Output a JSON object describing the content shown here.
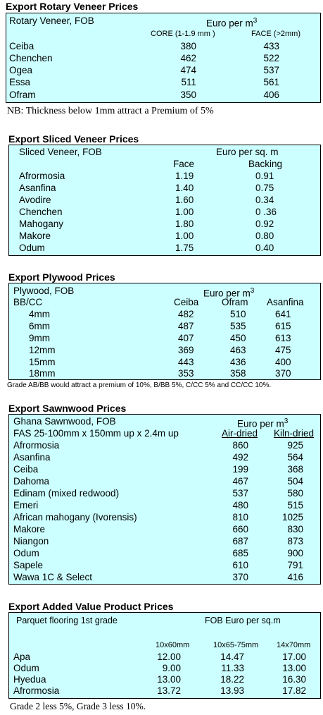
{
  "rotary": {
    "title": "Export Rotary Veneer Prices",
    "label": "Rotary Veneer,  FOB",
    "unit": "Euro  per m",
    "unit_sup": "3",
    "col1": "CORE (1-1.9 mm )",
    "col2": "FACE (>2mm)",
    "rows": [
      {
        "name": "Ceiba",
        "core": "380",
        "face": "433"
      },
      {
        "name": "Chenchen",
        "core": "462",
        "face": "522"
      },
      {
        "name": "Ogea",
        "core": "474",
        "face": "537"
      },
      {
        "name": "Essa",
        "core": "511",
        "face": "561"
      },
      {
        "name": "Ofram",
        "core": "350",
        "face": "406"
      }
    ],
    "note": "NB: Thickness below 1mm attract a Premium of 5%"
  },
  "sliced": {
    "title": "Export Sliced Veneer Prices",
    "label": "Sliced Veneer, FOB",
    "unit": "Euro per sq. m",
    "col1": "Face",
    "col2": "Backing",
    "rows": [
      {
        "name": "Afrormosia",
        "face": "1.19",
        "backing": "0.91"
      },
      {
        "name": "Asanfina",
        "face": "1.40",
        "backing": "0.75"
      },
      {
        "name": "Avodire",
        "face": "1.60",
        "backing": "0.34"
      },
      {
        "name": "Chenchen",
        "face": "1.00",
        "backing": "0 .36"
      },
      {
        "name": "Mahogany",
        "face": "1.80",
        "backing": "0.92"
      },
      {
        "name": "Makore",
        "face": "1.00",
        "backing": "0.80"
      },
      {
        "name": "Odum",
        "face": "1.75",
        "backing": "0.40"
      }
    ]
  },
  "plywood": {
    "title": "Export Plywood Prices",
    "label": "Plywood, FOB",
    "sublabel": "BB/CC",
    "unit": "Euro per m",
    "unit_sup": "3",
    "col1": "Ceiba",
    "col2": "Ofram",
    "col3": "Asanfina",
    "rows": [
      {
        "name": "4mm",
        "ceiba": "482",
        "ofram": "510",
        "asanfina": "641"
      },
      {
        "name": "6mm",
        "ceiba": "487",
        "ofram": "535",
        "asanfina": "615"
      },
      {
        "name": "9mm",
        "ceiba": "407",
        "ofram": "450",
        "asanfina": "613"
      },
      {
        "name": "12mm",
        "ceiba": "369",
        "ofram": "463",
        "asanfina": "475"
      },
      {
        "name": "15mm",
        "ceiba": "443",
        "ofram": "436",
        "asanfina": "400"
      },
      {
        "name": "18mm",
        "ceiba": "353",
        "ofram": "358",
        "asanfina": "370"
      }
    ],
    "note": "Grade AB/BB would attract a premium of 10%, B/BB 5%, C/CC 5% and CC/CC 10%."
  },
  "sawn": {
    "title": "Export Sawnwood Prices",
    "label": "Ghana Sawnwood, FOB",
    "unit": "Euro per m",
    "unit_sup": "3",
    "spec": "FAS 25-100mm x 150mm up x 2.4m up",
    "col1": "Air-dried",
    "col2": "Kiln-dried",
    "rows": [
      {
        "name": "Afrormosia",
        "air": "860",
        "kiln": "925"
      },
      {
        "name": "Asanfina",
        "air": "492",
        "kiln": "564"
      },
      {
        "name": "Ceiba",
        "air": "199",
        "kiln": "368"
      },
      {
        "name": "Dahoma",
        "air": "467",
        "kiln": "504"
      },
      {
        "name": "Edinam (mixed redwood)",
        "air": "537",
        "kiln": "580"
      },
      {
        "name": "Emeri",
        "air": "480",
        "kiln": "515"
      },
      {
        "name": "African mahogany (Ivorensis)",
        "air": "810",
        "kiln": "1025"
      },
      {
        "name": "Makore",
        "air": "660",
        "kiln": "830"
      },
      {
        "name": "Niangon",
        "air": "687",
        "kiln": "873"
      },
      {
        "name": "Odum",
        "air": "685",
        "kiln": "900"
      },
      {
        "name": "Sapele",
        "air": "610",
        "kiln": "791"
      },
      {
        "name": "Wawa 1C & Select",
        "air": "370",
        "kiln": "416"
      }
    ]
  },
  "added": {
    "title": "Export Added Value Product Prices",
    "label": "Parquet flooring 1st grade",
    "unit": "FOB Euro per sq.m",
    "col1": "10x60mm",
    "col2": "10x65-75mm",
    "col3": "14x70mm",
    "rows": [
      {
        "name": "Apa",
        "c1": "12.00",
        "c2": "14.47",
        "c3": "17.00"
      },
      {
        "name": "Odum",
        "c1": "9.00",
        "c2": "11.33",
        "c3": "13.00"
      },
      {
        "name": "Hyedua",
        "c1": "13.00",
        "c2": "18.22",
        "c3": "16.30"
      },
      {
        "name": "Afrormosia",
        "c1": "13.72",
        "c2": "13.93",
        "c3": "17.82"
      }
    ],
    "note": "Grade 2 less 5%, Grade 3 less 10%."
  }
}
